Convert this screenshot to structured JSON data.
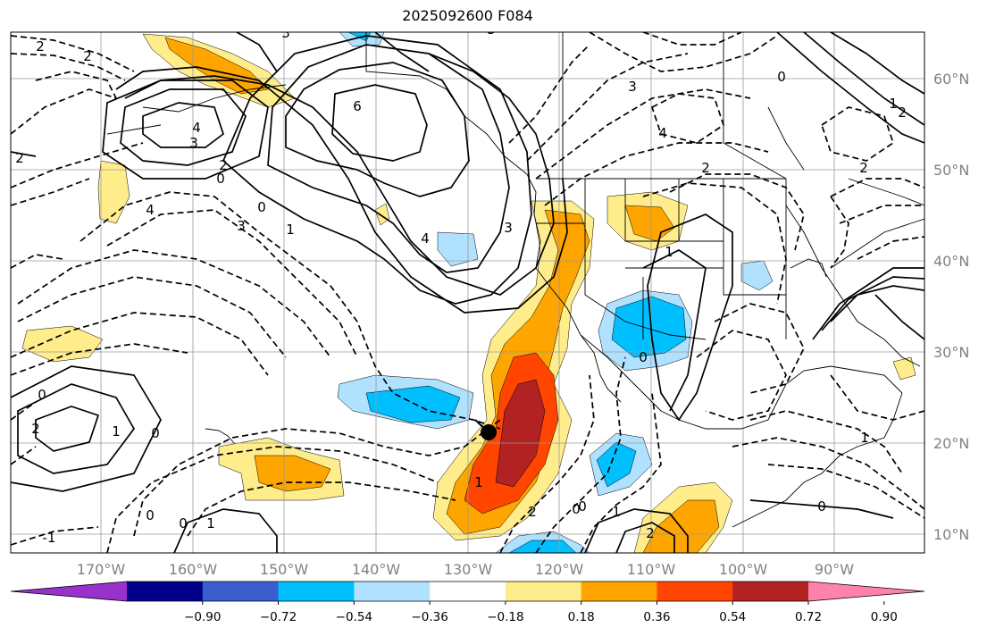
{
  "title": "2025092600 F084",
  "lat_labels": [
    "60°N",
    "50°N",
    "40°N",
    "30°N",
    "20°N",
    "10°N"
  ],
  "lon_labels": [
    "170°W",
    "160°W",
    "150°W",
    "140°W",
    "130°W",
    "120°W",
    "110°W",
    "100°W",
    "90°W"
  ],
  "colorbar": {
    "ticks": [
      "−0.90",
      "−0.72",
      "−0.54",
      "−0.36",
      "−0.18",
      "0.18",
      "0.36",
      "0.54",
      "0.72",
      "0.90"
    ],
    "colors": [
      "#9932cc",
      "#00008b",
      "#3a5fcd",
      "#00bfff",
      "#b0e2ff",
      "#ffffff",
      "#ffec8b",
      "#ffa500",
      "#ff4500",
      "#b22222",
      "#ff82ab"
    ]
  },
  "contour_labels": [
    "2",
    "2",
    "3",
    "6",
    "4",
    "3",
    "3",
    "2",
    "4",
    "3",
    "0",
    "3",
    "2",
    "1",
    "0",
    "4",
    "4",
    "3",
    "2",
    "0",
    "1",
    "0",
    "2",
    "1",
    "0",
    "0",
    "1",
    "1",
    "0",
    "2",
    "0",
    "2",
    "1",
    "0",
    "-1",
    "2",
    "0",
    "1",
    "2",
    "0",
    "1"
  ],
  "marker": "storm-center"
}
